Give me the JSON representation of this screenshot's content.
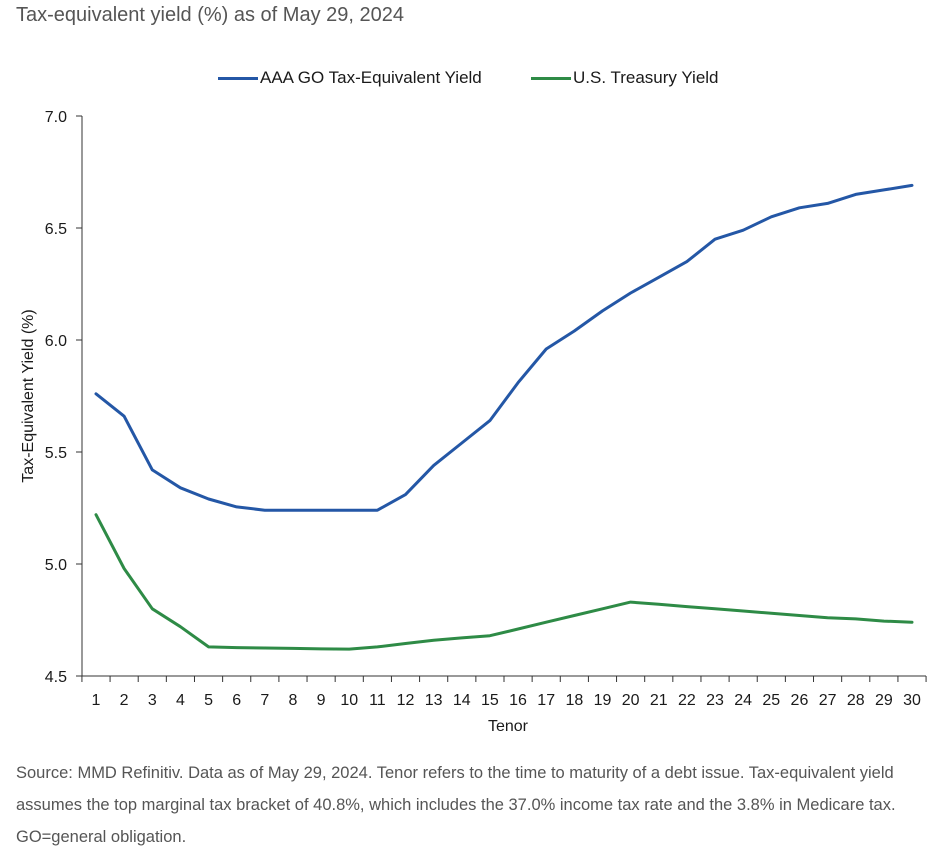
{
  "title": "Tax-equivalent yield (%) as of May 29, 2024",
  "source": "Source: MMD Refinitiv. Data as of May 29, 2024. Tenor refers to the time to maturity of a debt issue. Tax-equivalent yield assumes the top marginal tax bracket of 40.8%, which includes the 37.0% income tax rate and the 3.8% in Medicare tax. GO=general obligation.",
  "colors": {
    "aaa": "#2457a6",
    "treasury": "#2e8b46",
    "axis": "#333333",
    "text": "#1a1a1a"
  },
  "chart_data": {
    "type": "line",
    "title": "Tax-equivalent yield (%) as of May 29, 2024",
    "xlabel": "Tenor",
    "ylabel": "Tax-Equivalent Yield (%)",
    "ylim": [
      4.5,
      7.0
    ],
    "yticks": [
      "4.5",
      "5.0",
      "5.5",
      "6.0",
      "6.5",
      "7.0"
    ],
    "x": [
      1,
      2,
      3,
      4,
      5,
      6,
      7,
      8,
      9,
      10,
      11,
      12,
      13,
      14,
      15,
      16,
      17,
      18,
      19,
      20,
      21,
      22,
      23,
      24,
      25,
      26,
      27,
      28,
      29,
      30
    ],
    "legend_position": "top-center",
    "grid": false,
    "series": [
      {
        "name": "AAA GO Tax-Equivalent Yield",
        "color": "#2457a6",
        "values": [
          5.76,
          5.66,
          5.42,
          5.34,
          5.29,
          5.255,
          5.24,
          5.24,
          5.24,
          5.24,
          5.24,
          5.31,
          5.44,
          5.54,
          5.64,
          5.81,
          5.96,
          6.04,
          6.13,
          6.21,
          6.28,
          6.35,
          6.45,
          6.49,
          6.55,
          6.59,
          6.61,
          6.65,
          6.67,
          6.69
        ]
      },
      {
        "name": "U.S. Treasury Yield",
        "color": "#2e8b46",
        "values": [
          5.22,
          4.98,
          4.8,
          4.72,
          4.63,
          4.627,
          4.625,
          4.623,
          4.621,
          4.62,
          4.63,
          4.645,
          4.66,
          4.67,
          4.68,
          4.71,
          4.74,
          4.77,
          4.8,
          4.83,
          4.82,
          4.81,
          4.8,
          4.79,
          4.78,
          4.77,
          4.76,
          4.755,
          4.745,
          4.74
        ]
      }
    ]
  }
}
